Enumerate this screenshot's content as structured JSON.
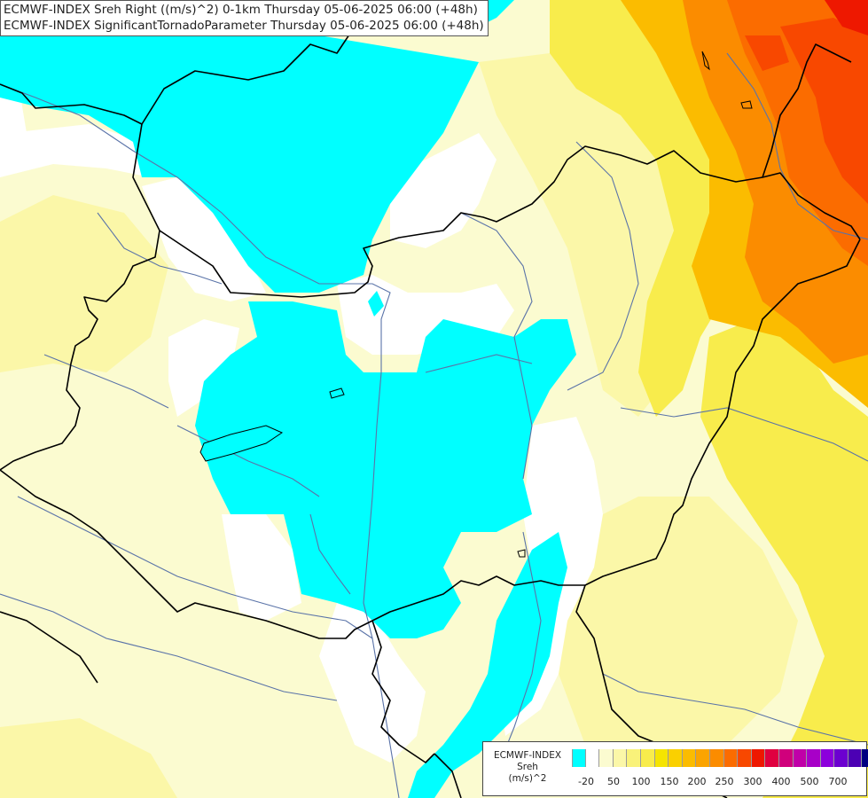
{
  "header": {
    "line1": "ECMWF-INDEX Sreh Right ((m/s)^2) 0-1km Thursday 05-06-2025 06:00 (+48h)",
    "line2": "ECMWF-INDEX SignificantTornadoParameter Thursday 05-06-2025 06:00 (+48h)"
  },
  "legend": {
    "title_line1": "ECMWF-INDEX",
    "title_line2": "Sreh",
    "title_line3": "(m/s)^2",
    "colors": [
      "#00ffff",
      "#ffffff",
      "#fbfbd0",
      "#fbf7a8",
      "#f9f27a",
      "#f8ec4c",
      "#f5e400",
      "#fad000",
      "#fbbc00",
      "#fba400",
      "#fb8c00",
      "#fb6c00",
      "#f84800",
      "#ee1800",
      "#e00040",
      "#d0007c",
      "#c000a8",
      "#a800c8",
      "#8c00dc",
      "#6c00d0",
      "#4c00b4",
      "#000080"
    ],
    "ticks": [
      "-20",
      "50",
      "100",
      "150",
      "200",
      "250",
      "300",
      "400",
      "500",
      "700"
    ]
  },
  "map": {
    "features": [
      "country-borders",
      "rivers",
      "lakes"
    ],
    "colors": {
      "cyan": "#00ffff",
      "pale_yellow": "#fbfbd0",
      "light_yellow": "#fbf7a8",
      "yellow": "#f5e400",
      "orange": "#fba400",
      "red_orange": "#f84800",
      "red": "#ee1800",
      "border": "#000000",
      "river": "#5a73a8"
    }
  }
}
